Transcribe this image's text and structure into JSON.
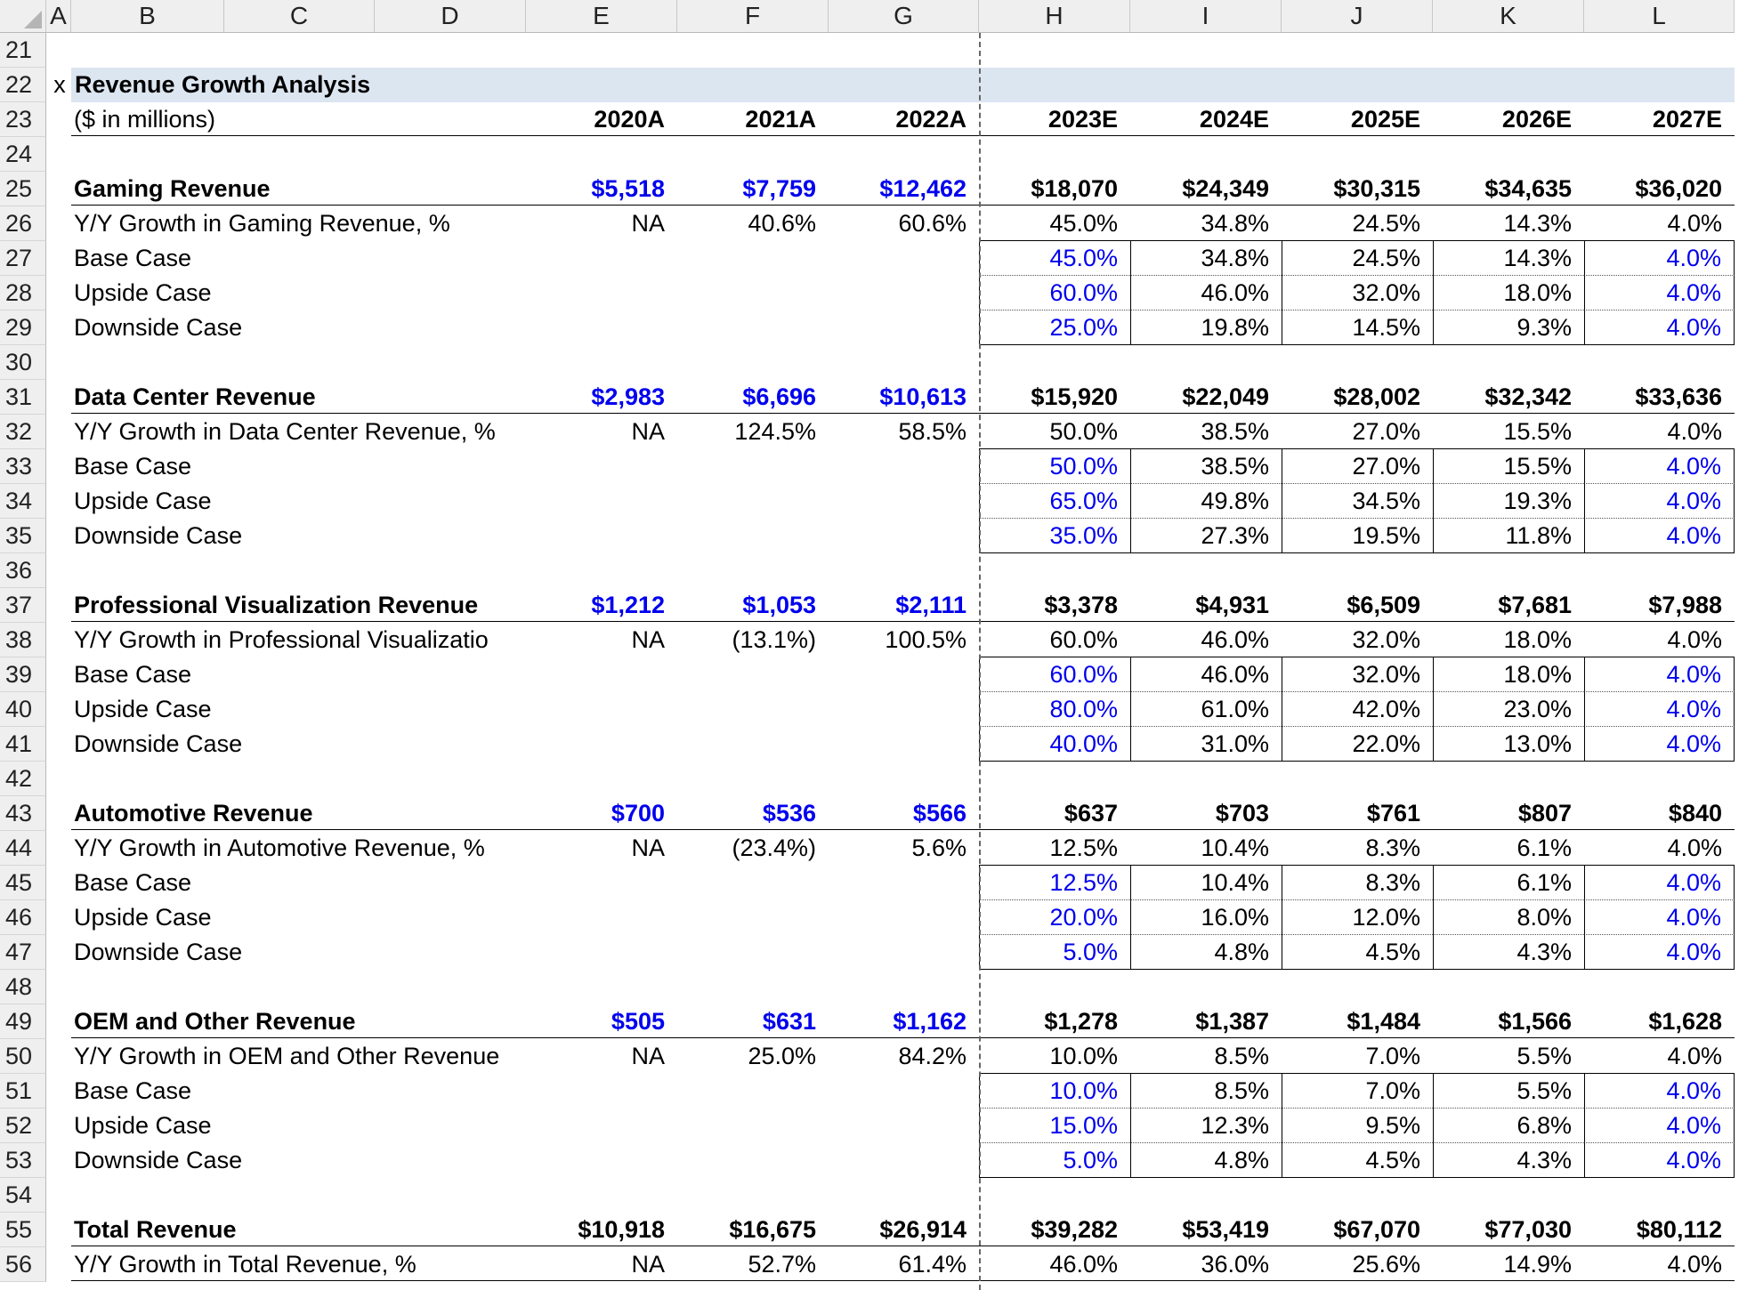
{
  "columns": [
    "A",
    "B",
    "C",
    "D",
    "E",
    "F",
    "G",
    "H",
    "I",
    "J",
    "K",
    "L"
  ],
  "rows_numbers": [
    21,
    22,
    23,
    24,
    25,
    26,
    27,
    28,
    29,
    30,
    31,
    32,
    33,
    34,
    35,
    36,
    37,
    38,
    39,
    40,
    41,
    42,
    43,
    44,
    45,
    46,
    47,
    48,
    49,
    50,
    51,
    52,
    53,
    54,
    55,
    56
  ],
  "title_marker": "x",
  "title": "Revenue Growth Analysis",
  "units": "($ in millions)",
  "years": [
    "2020A",
    "2021A",
    "2022A",
    "2023E",
    "2024E",
    "2025E",
    "2026E",
    "2027E"
  ],
  "sections": [
    {
      "name": "Gaming Revenue",
      "values": [
        "$5,518",
        "$7,759",
        "$12,462",
        "$18,070",
        "$24,349",
        "$30,315",
        "$34,635",
        "$36,020"
      ],
      "growth_label": "Y/Y Growth in Gaming Revenue, %",
      "growth": [
        "NA",
        "40.6%",
        "60.6%",
        "45.0%",
        "34.8%",
        "24.5%",
        "14.3%",
        "4.0%"
      ],
      "base": [
        "45.0%",
        "34.8%",
        "24.5%",
        "14.3%",
        "4.0%"
      ],
      "upside": [
        "60.0%",
        "46.0%",
        "32.0%",
        "18.0%",
        "4.0%"
      ],
      "downside": [
        "25.0%",
        "19.8%",
        "14.5%",
        "9.3%",
        "4.0%"
      ]
    },
    {
      "name": "Data Center Revenue",
      "values": [
        "$2,983",
        "$6,696",
        "$10,613",
        "$15,920",
        "$22,049",
        "$28,002",
        "$32,342",
        "$33,636"
      ],
      "growth_label": "Y/Y Growth in Data Center Revenue, %",
      "growth": [
        "NA",
        "124.5%",
        "58.5%",
        "50.0%",
        "38.5%",
        "27.0%",
        "15.5%",
        "4.0%"
      ],
      "base": [
        "50.0%",
        "38.5%",
        "27.0%",
        "15.5%",
        "4.0%"
      ],
      "upside": [
        "65.0%",
        "49.8%",
        "34.5%",
        "19.3%",
        "4.0%"
      ],
      "downside": [
        "35.0%",
        "27.3%",
        "19.5%",
        "11.8%",
        "4.0%"
      ]
    },
    {
      "name": "Professional Visualization Revenue",
      "values": [
        "$1,212",
        "$1,053",
        "$2,111",
        "$3,378",
        "$4,931",
        "$6,509",
        "$7,681",
        "$7,988"
      ],
      "growth_label": "Y/Y Growth in Professional Visualizatio",
      "growth": [
        "NA",
        "(13.1%)",
        "100.5%",
        "60.0%",
        "46.0%",
        "32.0%",
        "18.0%",
        "4.0%"
      ],
      "base": [
        "60.0%",
        "46.0%",
        "32.0%",
        "18.0%",
        "4.0%"
      ],
      "upside": [
        "80.0%",
        "61.0%",
        "42.0%",
        "23.0%",
        "4.0%"
      ],
      "downside": [
        "40.0%",
        "31.0%",
        "22.0%",
        "13.0%",
        "4.0%"
      ]
    },
    {
      "name": "Automotive Revenue",
      "values": [
        "$700",
        "$536",
        "$566",
        "$637",
        "$703",
        "$761",
        "$807",
        "$840"
      ],
      "growth_label": "Y/Y Growth in Automotive Revenue, %",
      "growth": [
        "NA",
        "(23.4%)",
        "5.6%",
        "12.5%",
        "10.4%",
        "8.3%",
        "6.1%",
        "4.0%"
      ],
      "base": [
        "12.5%",
        "10.4%",
        "8.3%",
        "6.1%",
        "4.0%"
      ],
      "upside": [
        "20.0%",
        "16.0%",
        "12.0%",
        "8.0%",
        "4.0%"
      ],
      "downside": [
        "5.0%",
        "4.8%",
        "4.5%",
        "4.3%",
        "4.0%"
      ]
    },
    {
      "name": "OEM and Other Revenue",
      "values": [
        "$505",
        "$631",
        "$1,162",
        "$1,278",
        "$1,387",
        "$1,484",
        "$1,566",
        "$1,628"
      ],
      "growth_label": "Y/Y Growth in OEM and Other Revenue",
      "growth": [
        "NA",
        "25.0%",
        "84.2%",
        "10.0%",
        "8.5%",
        "7.0%",
        "5.5%",
        "4.0%"
      ],
      "base": [
        "10.0%",
        "8.5%",
        "7.0%",
        "5.5%",
        "4.0%"
      ],
      "upside": [
        "15.0%",
        "12.3%",
        "9.5%",
        "6.8%",
        "4.0%"
      ],
      "downside": [
        "5.0%",
        "4.8%",
        "4.5%",
        "4.3%",
        "4.0%"
      ]
    }
  ],
  "case_labels": {
    "base": "Base Case",
    "upside": "Upside Case",
    "downside": "Downside Case"
  },
  "total": {
    "name": "Total Revenue",
    "values": [
      "$10,918",
      "$16,675",
      "$26,914",
      "$39,282",
      "$53,419",
      "$67,070",
      "$77,030",
      "$80,112"
    ],
    "growth_label": "Y/Y Growth in Total Revenue, %",
    "growth": [
      "NA",
      "52.7%",
      "61.4%",
      "46.0%",
      "36.0%",
      "25.6%",
      "14.9%",
      "4.0%"
    ]
  },
  "colors": {
    "input_blue": "#0000ee",
    "title_bg": "#dce6f1",
    "header_bg": "#efefef"
  }
}
